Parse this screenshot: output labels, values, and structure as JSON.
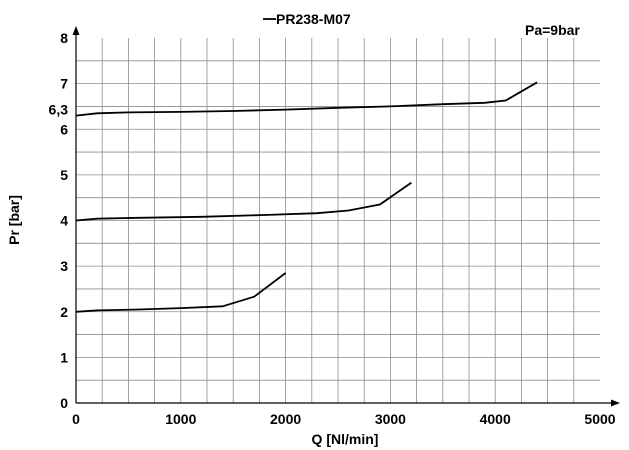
{
  "chart_data": {
    "type": "line",
    "title": "PR238-M07",
    "annotation": "Pa=9bar",
    "xlabel": "Q [Nl/min]",
    "ylabel": "Pr [bar]",
    "xlim": [
      0,
      5000
    ],
    "ylim": [
      0,
      8
    ],
    "x_ticks": [
      0,
      1000,
      2000,
      3000,
      4000,
      5000
    ],
    "y_ticks": [
      0,
      1,
      2,
      3,
      4,
      5,
      6,
      7,
      8
    ],
    "extra_y_tick": {
      "value": 6.3,
      "label": "6,3"
    },
    "grid": true,
    "series": [
      {
        "values": [
          [
            0,
            6.3
          ],
          [
            200,
            6.35
          ],
          [
            500,
            6.37
          ],
          [
            1000,
            6.38
          ],
          [
            1500,
            6.4
          ],
          [
            2000,
            6.43
          ],
          [
            2500,
            6.47
          ],
          [
            3000,
            6.5
          ],
          [
            3500,
            6.55
          ],
          [
            3900,
            6.58
          ],
          [
            4100,
            6.63
          ],
          [
            4400,
            7.03
          ]
        ]
      },
      {
        "values": [
          [
            0,
            4.0
          ],
          [
            200,
            4.04
          ],
          [
            600,
            4.06
          ],
          [
            1200,
            4.08
          ],
          [
            1800,
            4.12
          ],
          [
            2300,
            4.16
          ],
          [
            2600,
            4.22
          ],
          [
            2900,
            4.35
          ],
          [
            3200,
            4.83
          ]
        ]
      },
      {
        "values": [
          [
            0,
            2.0
          ],
          [
            200,
            2.03
          ],
          [
            600,
            2.05
          ],
          [
            1000,
            2.08
          ],
          [
            1400,
            2.12
          ],
          [
            1700,
            2.33
          ],
          [
            2000,
            2.85
          ]
        ]
      }
    ],
    "colors": {
      "line": "#000000",
      "grid": "#8c8c8c",
      "axis": "#000000"
    }
  }
}
